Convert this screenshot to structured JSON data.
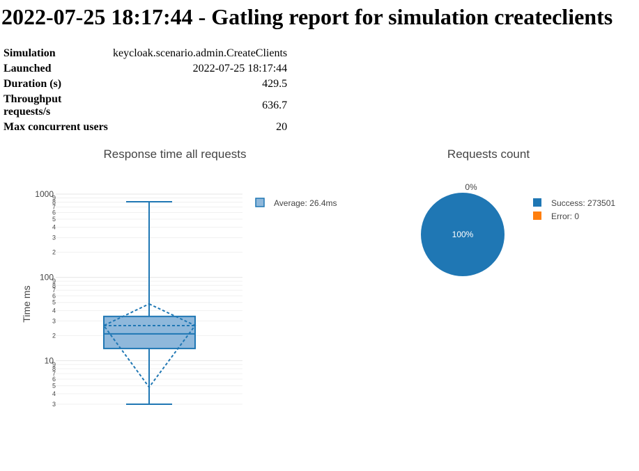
{
  "report": {
    "title": "2022-07-25 18:17:44 - Gatling report for simulation createclients"
  },
  "summary": [
    {
      "label": "Simulation",
      "value": "keycloak.scenario.admin.CreateClients"
    },
    {
      "label": "Launched",
      "value": "2022-07-25 18:17:44"
    },
    {
      "label": "Duration (s)",
      "value": "429.5"
    },
    {
      "label": "Throughput requests/s",
      "value": "636.7"
    },
    {
      "label": "Max concurrent users",
      "value": "20"
    }
  ],
  "colors": {
    "primary": "#1f77b4",
    "error": "#ff7f0e",
    "box_fill": "#8fb8db",
    "grid": "#eeeeee",
    "text": "#444444"
  },
  "chart_data": [
    {
      "type": "box",
      "title": "Response time all requests",
      "xlabel": "",
      "ylabel": "Time ms",
      "yscale": "log",
      "ylim": [
        3,
        1000
      ],
      "grid": true,
      "legend_position": "right",
      "major_tick_labels": [
        "1000",
        "100",
        "10"
      ],
      "minor_tick_labels": [
        "9",
        "8",
        "7",
        "6",
        "5",
        "4",
        "3",
        "2"
      ],
      "series": [
        {
          "legend": "Average: 26.4ms",
          "min": 3,
          "q1": 14,
          "median": 21,
          "q3": 34,
          "max": 810,
          "mean": 26.4,
          "mean_band": [
            4.8,
            48
          ]
        }
      ]
    },
    {
      "type": "pie",
      "title": "Requests count",
      "legend_position": "right",
      "slices": [
        {
          "legend": "Success: 273501",
          "value": 273501,
          "pct_label": "100%",
          "color": "#1f77b4"
        },
        {
          "legend": "Error: 0",
          "value": 0,
          "pct_label": "0%",
          "color": "#ff7f0e"
        }
      ]
    }
  ]
}
